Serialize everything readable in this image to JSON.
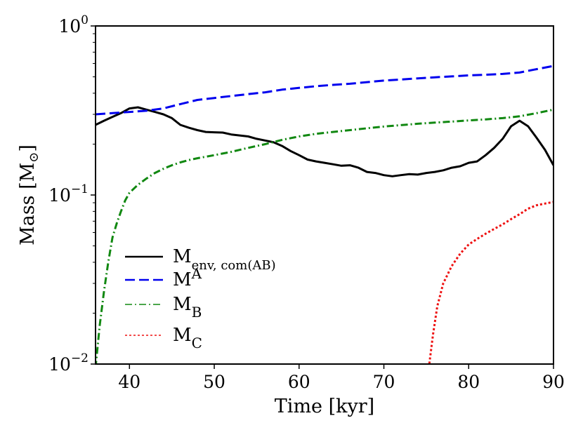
{
  "chart_data": {
    "type": "line",
    "title": "",
    "xlabel": "Time [kyr]",
    "ylabel_main": "Mass [M",
    "ylabel_sym": "⊙",
    "ylabel_end": "]",
    "xlim": [
      36,
      90
    ],
    "ylim": [
      0.01,
      1.0
    ],
    "yscale": "log",
    "xticks": [
      40,
      50,
      60,
      70,
      80,
      90
    ],
    "xtick_labels": [
      "40",
      "50",
      "60",
      "70",
      "80",
      "90"
    ],
    "yticks": [
      {
        "value": 1.0,
        "base": "10",
        "exp": "0"
      },
      {
        "value": 0.1,
        "base": "10",
        "exp": "−1"
      },
      {
        "value": 0.01,
        "base": "10",
        "exp": "−2"
      }
    ],
    "legend_position": "lower-left",
    "series": [
      {
        "name": "M_env,com(AB)",
        "label_main": "M",
        "label_sub": "env, com(AB)",
        "label_sup": "",
        "color": "#000000",
        "style": "solid",
        "x": [
          36,
          37,
          38,
          39,
          40,
          41,
          42,
          43,
          44,
          45,
          46,
          47,
          48,
          49,
          50,
          51,
          52,
          53,
          54,
          55,
          56,
          57,
          58,
          59,
          60,
          61,
          62,
          63,
          64,
          65,
          66,
          67,
          68,
          69,
          70,
          71,
          72,
          73,
          74,
          75,
          76,
          77,
          78,
          79,
          80,
          81,
          82,
          83,
          84,
          85,
          86,
          87,
          88,
          89,
          90
        ],
        "values": [
          0.26,
          0.275,
          0.29,
          0.305,
          0.325,
          0.33,
          0.32,
          0.31,
          0.3,
          0.285,
          0.26,
          0.25,
          0.242,
          0.236,
          0.235,
          0.234,
          0.228,
          0.225,
          0.222,
          0.215,
          0.21,
          0.205,
          0.195,
          0.182,
          0.172,
          0.162,
          0.158,
          0.155,
          0.152,
          0.149,
          0.15,
          0.145,
          0.137,
          0.135,
          0.131,
          0.129,
          0.131,
          0.133,
          0.132,
          0.135,
          0.137,
          0.14,
          0.145,
          0.148,
          0.155,
          0.158,
          0.172,
          0.19,
          0.215,
          0.255,
          0.275,
          0.255,
          0.218,
          0.185,
          0.15
        ]
      },
      {
        "name": "M_A",
        "label_main": "M",
        "label_sub": "",
        "label_sup": "A",
        "color": "#0000ee",
        "style": "dashed",
        "x": [
          36,
          38,
          40,
          42,
          44,
          46,
          48,
          50,
          52,
          54,
          56,
          58,
          60,
          62,
          64,
          66,
          68,
          70,
          72,
          74,
          76,
          78,
          80,
          82,
          84,
          86,
          88,
          90
        ],
        "values": [
          0.3,
          0.305,
          0.31,
          0.315,
          0.325,
          0.345,
          0.365,
          0.375,
          0.385,
          0.395,
          0.405,
          0.42,
          0.43,
          0.44,
          0.448,
          0.455,
          0.465,
          0.475,
          0.482,
          0.49,
          0.497,
          0.503,
          0.51,
          0.515,
          0.52,
          0.53,
          0.555,
          0.58
        ]
      },
      {
        "name": "M_B",
        "label_main": "M",
        "label_sub": "B",
        "label_sup": "",
        "color": "#118811",
        "style": "dashdot",
        "x": [
          36,
          36.5,
          37,
          37.5,
          38,
          38.5,
          39,
          39.5,
          40,
          41,
          42,
          43,
          44,
          45,
          46,
          47,
          48,
          50,
          52,
          54,
          56,
          58,
          60,
          62,
          64,
          66,
          68,
          70,
          72,
          74,
          76,
          78,
          80,
          82,
          84,
          86,
          88,
          90
        ],
        "values": [
          0.0095,
          0.017,
          0.027,
          0.04,
          0.056,
          0.068,
          0.08,
          0.093,
          0.103,
          0.115,
          0.125,
          0.135,
          0.143,
          0.15,
          0.156,
          0.161,
          0.165,
          0.172,
          0.18,
          0.19,
          0.2,
          0.212,
          0.222,
          0.23,
          0.236,
          0.242,
          0.248,
          0.254,
          0.259,
          0.264,
          0.268,
          0.272,
          0.276,
          0.28,
          0.285,
          0.292,
          0.305,
          0.32
        ]
      },
      {
        "name": "M_C",
        "label_main": "M",
        "label_sub": "C",
        "label_sup": "",
        "color": "#ee1111",
        "style": "dotted",
        "x": [
          75.3,
          75.8,
          76.3,
          77,
          78,
          79,
          80,
          81,
          82,
          83,
          84,
          85,
          86,
          87,
          88,
          89,
          90
        ],
        "values": [
          0.0095,
          0.015,
          0.022,
          0.03,
          0.038,
          0.045,
          0.051,
          0.055,
          0.059,
          0.063,
          0.067,
          0.072,
          0.077,
          0.083,
          0.087,
          0.089,
          0.091
        ]
      }
    ]
  }
}
